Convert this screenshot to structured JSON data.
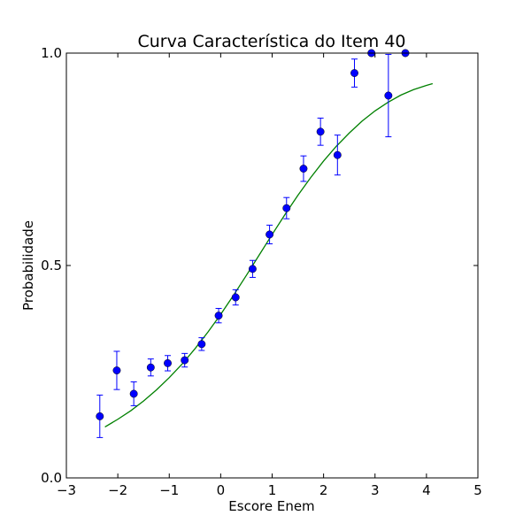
{
  "chart_data": {
    "type": "scatter",
    "title": "Curva Característica do Item 40",
    "xlabel": "Escore Enem",
    "ylabel": "Probabilidade",
    "xlim": [
      -3,
      5
    ],
    "ylim": [
      0.0,
      1.0
    ],
    "x_ticks": [
      -3,
      -2,
      -1,
      0,
      1,
      2,
      3,
      4,
      5
    ],
    "x_tick_labels": [
      "−3",
      "−2",
      "−1",
      "0",
      "1",
      "2",
      "3",
      "4",
      "5"
    ],
    "y_ticks": [
      0.0,
      0.5,
      1.0
    ],
    "y_tick_labels": [
      "0.0",
      "0.5",
      "1.0"
    ],
    "grid": false,
    "series": [
      {
        "kind": "points-with-error-bars",
        "color": "#0000ff",
        "points": [
          {
            "x": -2.35,
            "y": 0.145,
            "err": 0.05
          },
          {
            "x": -2.02,
            "y": 0.253,
            "err": 0.045
          },
          {
            "x": -1.69,
            "y": 0.198,
            "err": 0.028
          },
          {
            "x": -1.36,
            "y": 0.26,
            "err": 0.02
          },
          {
            "x": -1.03,
            "y": 0.27,
            "err": 0.018
          },
          {
            "x": -0.7,
            "y": 0.277,
            "err": 0.016
          },
          {
            "x": -0.37,
            "y": 0.315,
            "err": 0.015
          },
          {
            "x": -0.04,
            "y": 0.382,
            "err": 0.017
          },
          {
            "x": 0.29,
            "y": 0.425,
            "err": 0.018
          },
          {
            "x": 0.62,
            "y": 0.492,
            "err": 0.02
          },
          {
            "x": 0.95,
            "y": 0.573,
            "err": 0.022
          },
          {
            "x": 1.28,
            "y": 0.635,
            "err": 0.025
          },
          {
            "x": 1.61,
            "y": 0.728,
            "err": 0.03
          },
          {
            "x": 1.94,
            "y": 0.815,
            "err": 0.032
          },
          {
            "x": 2.27,
            "y": 0.76,
            "err": 0.047
          },
          {
            "x": 2.6,
            "y": 0.953,
            "err": 0.033
          },
          {
            "x": 2.93,
            "y": 1.0,
            "err": 0.0
          },
          {
            "x": 3.26,
            "y": 0.9,
            "err": 0.097
          },
          {
            "x": 3.59,
            "y": 1.0,
            "err": 0.0
          }
        ]
      },
      {
        "kind": "curve",
        "color": "#008000",
        "x": [
          -2.25,
          -2.0,
          -1.75,
          -1.5,
          -1.25,
          -1.0,
          -0.75,
          -0.5,
          -0.25,
          0.0,
          0.25,
          0.5,
          0.75,
          1.0,
          1.25,
          1.5,
          1.75,
          2.0,
          2.25,
          2.5,
          2.75,
          3.0,
          3.25,
          3.5,
          3.75,
          4.0,
          4.12
        ],
        "y": [
          0.12,
          0.138,
          0.158,
          0.181,
          0.207,
          0.236,
          0.268,
          0.304,
          0.343,
          0.385,
          0.43,
          0.477,
          0.525,
          0.573,
          0.62,
          0.665,
          0.707,
          0.746,
          0.781,
          0.812,
          0.84,
          0.864,
          0.884,
          0.901,
          0.914,
          0.924,
          0.928
        ]
      }
    ]
  }
}
